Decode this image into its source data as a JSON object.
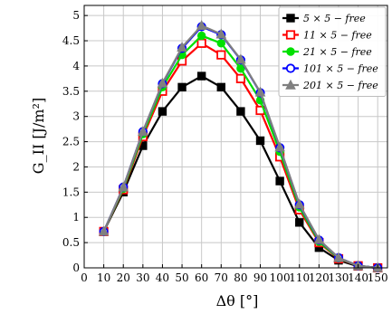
{
  "chart_data": {
    "type": "line",
    "xlabel": "Δθ [°]",
    "ylabel": "G_II [J/m²]",
    "xlim": [
      0,
      155
    ],
    "ylim": [
      0,
      5.2
    ],
    "xticks": [
      0,
      10,
      20,
      30,
      40,
      50,
      60,
      70,
      80,
      90,
      100,
      110,
      120,
      130,
      140,
      150
    ],
    "yticks": [
      0,
      0.5,
      1,
      1.5,
      2,
      2.5,
      3,
      3.5,
      4,
      4.5,
      5
    ],
    "grid": true,
    "legend_position": "top-right",
    "x": [
      10,
      20,
      30,
      40,
      50,
      60,
      70,
      80,
      90,
      100,
      110,
      120,
      130,
      140,
      150
    ],
    "series": [
      {
        "name": "5 × 5 − free",
        "color": "#000000",
        "marker": "square-filled",
        "values": [
          0.72,
          1.5,
          2.42,
          3.1,
          3.58,
          3.8,
          3.58,
          3.1,
          2.52,
          1.72,
          0.9,
          0.4,
          0.15,
          0.03,
          0.0
        ]
      },
      {
        "name": "11 × 5 − free",
        "color": "#ff0000",
        "marker": "square-open",
        "values": [
          0.72,
          1.55,
          2.6,
          3.5,
          4.1,
          4.45,
          4.22,
          3.75,
          3.12,
          2.2,
          1.15,
          0.5,
          0.18,
          0.04,
          0.0
        ]
      },
      {
        "name": "21 × 5 − free",
        "color": "#00e000",
        "marker": "circle-filled",
        "values": [
          0.72,
          1.57,
          2.65,
          3.58,
          4.22,
          4.6,
          4.45,
          3.95,
          3.32,
          2.3,
          1.2,
          0.52,
          0.19,
          0.04,
          0.0
        ]
      },
      {
        "name": "101 × 5 − free",
        "color": "#0000ff",
        "marker": "circle-open",
        "values": [
          0.72,
          1.6,
          2.7,
          3.65,
          4.35,
          4.78,
          4.62,
          4.12,
          3.47,
          2.38,
          1.25,
          0.55,
          0.2,
          0.04,
          0.0
        ]
      },
      {
        "name": "201 × 5 − free",
        "color": "#808080",
        "marker": "triangle-filled",
        "values": [
          0.72,
          1.6,
          2.7,
          3.66,
          4.37,
          4.8,
          4.63,
          4.13,
          3.48,
          2.39,
          1.26,
          0.56,
          0.2,
          0.04,
          0.0
        ]
      }
    ]
  }
}
